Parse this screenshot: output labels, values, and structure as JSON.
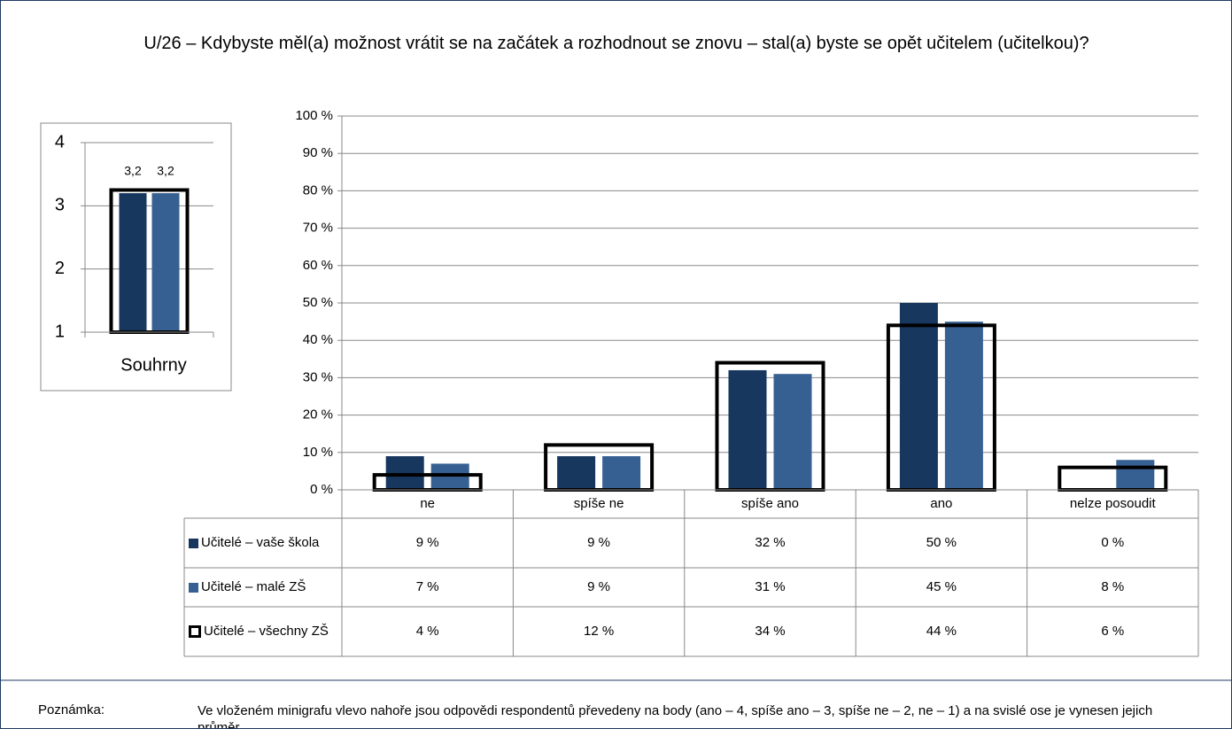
{
  "chart_data": [
    {
      "type": "bar",
      "title": "U/26 – Kdybyste měl(a) možnost vrátit se na začátek a rozhodnout se znovu – stal(a) byste se opět učitelem (učitelkou)?",
      "categories": [
        "ne",
        "spíše ne",
        "spíše ano",
        "ano",
        "nelze posoudit"
      ],
      "series": [
        {
          "name": "Učitelé – vaše škola",
          "color": "#17375e",
          "values": [
            9,
            9,
            32,
            50,
            0
          ],
          "value_labels": [
            "9 %",
            "9 %",
            "32 %",
            "50 %",
            "0 %"
          ]
        },
        {
          "name": "Učitelé – malé ZŠ",
          "color": "#376092",
          "values": [
            7,
            9,
            31,
            45,
            8
          ],
          "value_labels": [
            "7 %",
            "9 %",
            "31 %",
            "45 %",
            "8 %"
          ]
        },
        {
          "name": "Učitelé – všechny ZŠ",
          "color": "#000000",
          "fill": "none",
          "values": [
            4,
            12,
            34,
            44,
            6
          ],
          "value_labels": [
            "4 %",
            "12 %",
            "34 %",
            "44 %",
            "6 %"
          ]
        }
      ],
      "ylim": [
        0,
        100
      ],
      "yticks": [
        {
          "value": 0,
          "label": "0 %"
        },
        {
          "value": 10,
          "label": "10 %"
        },
        {
          "value": 20,
          "label": "20 %"
        },
        {
          "value": 30,
          "label": "30 %"
        },
        {
          "value": 40,
          "label": "40 %"
        },
        {
          "value": 50,
          "label": "50 %"
        },
        {
          "value": 60,
          "label": "60 %"
        },
        {
          "value": 70,
          "label": "70 %"
        },
        {
          "value": 80,
          "label": "80 %"
        },
        {
          "value": 90,
          "label": "90 %"
        },
        {
          "value": 100,
          "label": "100 %"
        }
      ],
      "grid": true
    },
    {
      "type": "bar",
      "categories": [
        "Souhrny"
      ],
      "series": [
        {
          "color": "#17375e",
          "values": [
            3.2
          ],
          "value_labels": [
            "3,2"
          ]
        },
        {
          "color": "#376092",
          "values": [
            3.2
          ],
          "value_labels": [
            "3,2"
          ]
        },
        {
          "color": "#000000",
          "fill": "none",
          "values": [
            3.25
          ]
        }
      ],
      "ylim": [
        1,
        4
      ],
      "yticks": [
        1,
        2,
        3,
        4
      ],
      "grid": true
    }
  ],
  "note": {
    "label": "Poznámka:",
    "text": "Ve vloženém minigrafu vlevo nahoře jsou odpovědi respondentů převedeny na body (ano – 4, spíše ano – 3, spíše ne – 2, ne – 1) a na svislé ose je vynesen jejich průměr."
  }
}
